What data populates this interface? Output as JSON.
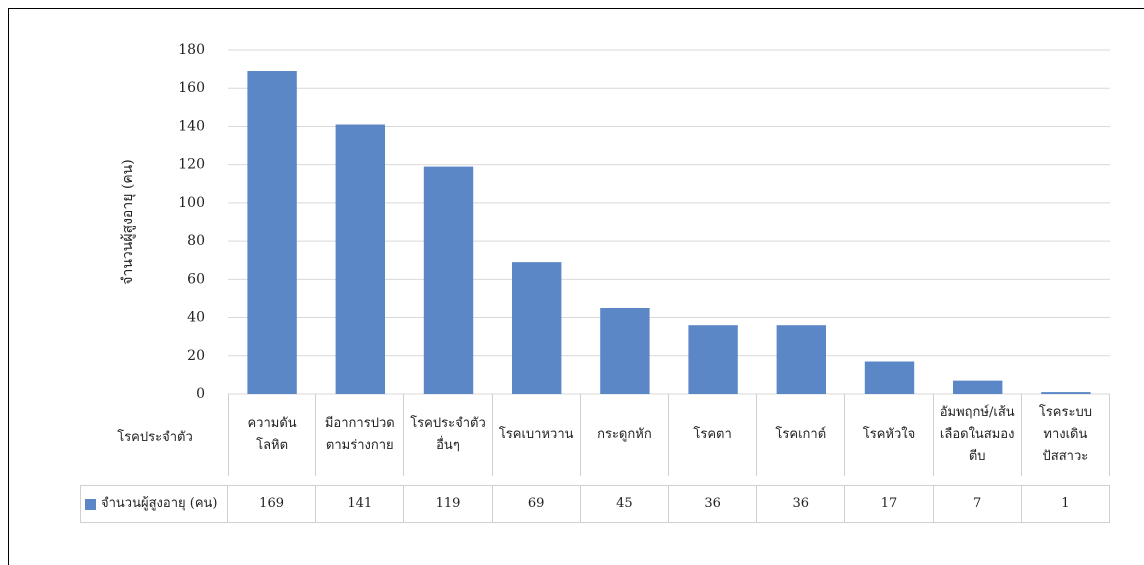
{
  "chart_data": {
    "type": "bar",
    "y_label": "จำนวนผู้สูงอายุ (คน)",
    "x_label": "โรคประจำตัว",
    "categories": [
      "ความดัน\nโลหิต",
      "มีอาการปวด\nตามร่างกาย",
      "โรคประจำตัว\nอื่นๆ",
      "โรคเบาหวาน",
      "กระดูกหัก",
      "โรคตา",
      "โรคเกาต์",
      "โรคหัวใจ",
      "อัมพฤกษ์/เส้น\nเลือดในสมอง\nตีบ",
      "โรคระบบ\nทางเดิน\nปัสสาวะ"
    ],
    "series": [
      {
        "name": "จำนวนผู้สูงอายุ (คน)",
        "color": "#5b87c6",
        "values": [
          169,
          141,
          119,
          69,
          45,
          36,
          36,
          17,
          7,
          1
        ]
      }
    ],
    "ylim": [
      0,
      180
    ],
    "yticks": [
      0,
      20,
      40,
      60,
      80,
      100,
      120,
      140,
      160,
      180
    ],
    "grid": true
  }
}
